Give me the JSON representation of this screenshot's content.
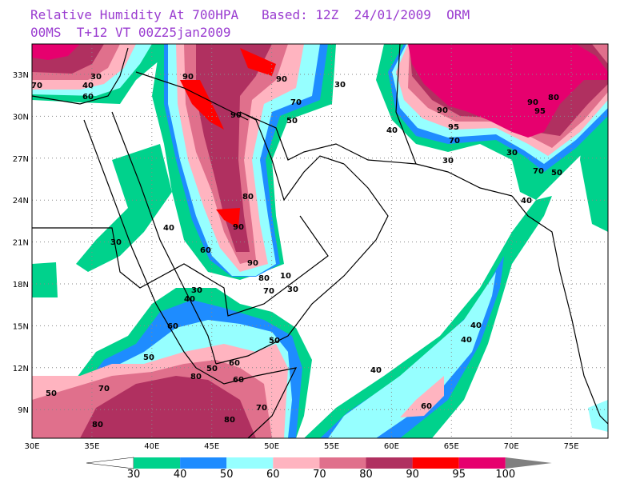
{
  "header": {
    "title_line1": "Relative Humidity At 700HPA   Based: 12Z  24/01/2009  ORM",
    "title_line2": "00MS  T+12 VT 00Z25jan2009"
  },
  "map": {
    "lat_labels": [
      "33N",
      "30N",
      "27N",
      "24N",
      "21N",
      "18N",
      "15N",
      "12N",
      "9N"
    ],
    "lon_labels": [
      "30E",
      "35E",
      "40E",
      "45E",
      "50E",
      "55E",
      "60E",
      "65E",
      "70E",
      "75E"
    ],
    "contour_labels": [
      "70",
      "30",
      "40",
      "60",
      "90",
      "90",
      "30",
      "70",
      "50",
      "90",
      "40",
      "90",
      "95",
      "70",
      "30",
      "95",
      "80",
      "90",
      "30",
      "70",
      "50",
      "40",
      "80",
      "90",
      "60",
      "90",
      "40",
      "30",
      "80",
      "70",
      "30",
      "10",
      "30",
      "40",
      "60",
      "50",
      "50",
      "60",
      "50",
      "80",
      "60",
      "70",
      "80",
      "40",
      "40",
      "40",
      "60",
      "50",
      "70",
      "80"
    ]
  },
  "colorbar": {
    "levels": [
      "30",
      "40",
      "50",
      "60",
      "70",
      "80",
      "90",
      "95",
      "100"
    ],
    "colors": [
      "#00d28c",
      "#1e8cff",
      "#96ffff",
      "#ffb4c0",
      "#e0708c",
      "#b03060",
      "#ff0000",
      "#e6006e"
    ],
    "below_color": "#ffffff",
    "above_color": "#808080"
  }
}
